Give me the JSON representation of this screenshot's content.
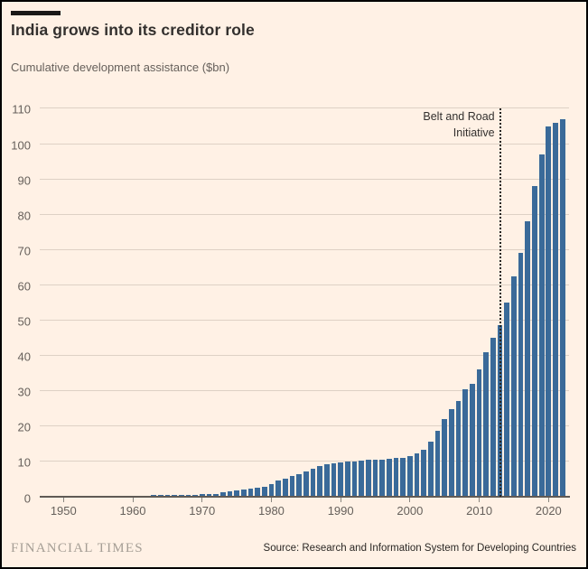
{
  "header": {
    "title": "India grows into its creditor role",
    "subtitle": "Cumulative development assistance ($bn)"
  },
  "footer": {
    "brand": "FINANCIAL TIMES",
    "source": "Source: Research and Information System for Developing Countries"
  },
  "colors": {
    "background": "#FFF1E5",
    "bar": "#3A6A99",
    "gridline": "#DED1C5",
    "axis_line": "#5F5A55",
    "tick": "#8A857F",
    "axis_text": "#66605B",
    "title_text": "#33302E",
    "annotation_text": "#33302E",
    "annotation_line": "#262421",
    "brand_text": "#A59E95",
    "accent_bar": "#1A1817"
  },
  "chart_data": {
    "type": "bar",
    "title": "India grows into its creditor role",
    "subtitle": "Cumulative development assistance ($bn)",
    "xlabel": "",
    "ylabel": "Cumulative development assistance ($bn)",
    "ylim": [
      0,
      110
    ],
    "ytick_interval": 10,
    "yticks": [
      0,
      10,
      20,
      30,
      40,
      50,
      60,
      70,
      80,
      90,
      100,
      110
    ],
    "xticks": [
      1950,
      1960,
      1970,
      1980,
      1990,
      2000,
      2010,
      2020
    ],
    "grid": "horizontal",
    "legend": "none",
    "bar_color": "#3A6A99",
    "annotation": {
      "text_lines": [
        "Belt and Road",
        "Initiative"
      ],
      "x": 2013,
      "style": "dotted-vertical-line"
    },
    "x": [
      1951,
      1952,
      1953,
      1954,
      1955,
      1956,
      1957,
      1958,
      1959,
      1960,
      1961,
      1962,
      1963,
      1964,
      1965,
      1966,
      1967,
      1968,
      1969,
      1970,
      1971,
      1972,
      1973,
      1974,
      1975,
      1976,
      1977,
      1978,
      1979,
      1980,
      1981,
      1982,
      1983,
      1984,
      1985,
      1986,
      1987,
      1988,
      1989,
      1990,
      1991,
      1992,
      1993,
      1994,
      1995,
      1996,
      1997,
      1998,
      1999,
      2000,
      2001,
      2002,
      2003,
      2004,
      2005,
      2006,
      2007,
      2008,
      2009,
      2010,
      2011,
      2012,
      2013,
      2014,
      2015,
      2016,
      2017,
      2018,
      2019,
      2020,
      2021,
      2022
    ],
    "values": [
      0.02,
      0.04,
      0.06,
      0.08,
      0.1,
      0.13,
      0.16,
      0.2,
      0.24,
      0.28,
      0.32,
      0.36,
      0.4,
      0.44,
      0.47,
      0.5,
      0.53,
      0.56,
      0.6,
      0.64,
      0.7,
      0.8,
      1.2,
      1.45,
      1.7,
      2.0,
      2.4,
      2.6,
      2.9,
      3.5,
      4.5,
      5.2,
      5.9,
      6.4,
      7.1,
      8.0,
      8.6,
      9.1,
      9.4,
      9.7,
      9.9,
      10.1,
      10.3,
      10.4,
      10.5,
      10.5,
      10.7,
      10.9,
      11.1,
      11.5,
      12.2,
      13.2,
      15.7,
      18.8,
      22.1,
      24.8,
      27.2,
      30.4,
      32.0,
      36.0,
      41.0,
      45.0,
      48.5,
      55.0,
      62.5,
      69.0,
      78.0,
      88.0,
      97.0,
      105.0,
      106.0,
      107.0
    ]
  }
}
